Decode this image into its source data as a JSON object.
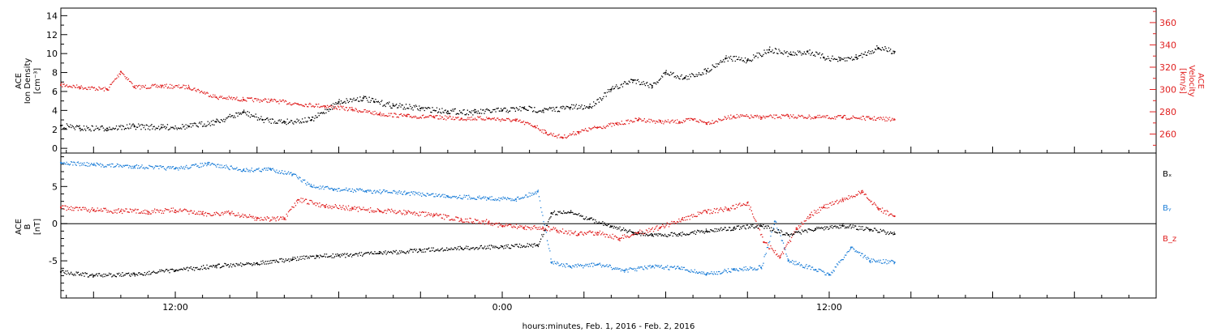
{
  "chart_data": [
    {
      "type": "scatter",
      "panel": "top",
      "title": "",
      "ylabel": [
        "ACE",
        "Ion Density",
        "[cm⁻³]"
      ],
      "y2label": [
        "ACE",
        "Velocity",
        "[km/s]"
      ],
      "ylim": [
        -0.5,
        14.8
      ],
      "y2lim": [
        243,
        373
      ],
      "yticks": [
        0,
        2,
        4,
        6,
        8,
        10,
        12,
        14
      ],
      "y2ticks": [
        260,
        280,
        300,
        320,
        340,
        360
      ],
      "colors": {
        "density": "#000000",
        "velocity": "#e02020"
      },
      "series": [
        {
          "name": "Ion Density",
          "axis": "left",
          "color": "#000000",
          "x": [
            7.8,
            8.5,
            9.5,
            10.5,
            11.5,
            12.5,
            13.5,
            14.5,
            15.2,
            16.0,
            17.0,
            18.0,
            18.9,
            19.3,
            20.0,
            21.0,
            22.0,
            23.0,
            24.0,
            24.8,
            25.5,
            26.5,
            27.2,
            28.0,
            28.8,
            29.5,
            30.0,
            30.7,
            31.5,
            32.2,
            33.0,
            33.8,
            34.6,
            35.2,
            35.8,
            36.4,
            37.0,
            37.8,
            38.4
          ],
          "y": [
            2.4,
            2.1,
            2.1,
            2.3,
            2.2,
            2.3,
            2.8,
            3.8,
            3.0,
            2.8,
            3.0,
            4.9,
            5.3,
            4.9,
            4.5,
            4.2,
            3.9,
            3.8,
            4.0,
            4.2,
            4.0,
            4.3,
            4.4,
            6.2,
            7.2,
            6.6,
            8.0,
            7.4,
            8.2,
            9.5,
            9.3,
            10.4,
            9.9,
            10.2,
            9.6,
            9.3,
            9.6,
            10.6,
            10.2
          ]
        },
        {
          "name": "Velocity",
          "axis": "right",
          "color": "#e02020",
          "x": [
            7.8,
            8.5,
            9.5,
            10.0,
            10.5,
            11.5,
            12.5,
            13.5,
            14.5,
            15.5,
            16.5,
            17.5,
            18.5,
            19.5,
            20.5,
            21.5,
            22.5,
            23.5,
            24.5,
            25.2,
            25.6,
            26.2,
            26.8,
            27.5,
            28.2,
            29.0,
            29.8,
            30.5,
            31.0,
            31.5,
            32.5,
            33.5,
            34.5,
            35.5,
            36.5,
            37.5,
            38.4
          ],
          "y": [
            304,
            302,
            300,
            316,
            302,
            303,
            302,
            293,
            291,
            290,
            287,
            285,
            282,
            278,
            276,
            275,
            274,
            274,
            272,
            267,
            261,
            257,
            262,
            266,
            269,
            273,
            271,
            271,
            273,
            270,
            276,
            275,
            276,
            275,
            275,
            274,
            273
          ]
        }
      ]
    },
    {
      "type": "scatter",
      "panel": "bottom",
      "title": "",
      "ylabel": [
        "ACE",
        "B",
        "[nT]"
      ],
      "ylim": [
        -10,
        9.5
      ],
      "yticks": [
        -5,
        0,
        5
      ],
      "zero_line": true,
      "colors": {
        "Bx": "#000000",
        "By": "#1e7fd8",
        "Bz": "#e02020"
      },
      "series": [
        {
          "name": "Bₓ",
          "color": "#000000",
          "x": [
            7.8,
            9.0,
            10.5,
            12.0,
            13.5,
            15.0,
            16.3,
            17.2,
            18.0,
            19.5,
            21.0,
            22.5,
            24.0,
            25.3,
            25.8,
            26.5,
            27.2,
            28.0,
            28.8,
            29.5,
            30.5,
            31.5,
            32.5,
            33.5,
            34.5,
            35.5,
            36.5,
            37.5,
            38.4
          ],
          "y": [
            -6.5,
            -7.0,
            -6.8,
            -6.3,
            -5.7,
            -5.3,
            -4.8,
            -4.4,
            -4.3,
            -4.0,
            -3.6,
            -3.3,
            -3.1,
            -2.9,
            1.4,
            1.5,
            0.6,
            -0.4,
            -1.2,
            -1.6,
            -1.4,
            -1.0,
            -0.6,
            -0.3,
            -1.5,
            -0.7,
            -0.3,
            -0.8,
            -1.4
          ]
        },
        {
          "name": "Bᵧ",
          "color": "#1e7fd8",
          "x": [
            7.8,
            9.0,
            10.5,
            12.0,
            13.2,
            14.5,
            15.5,
            16.3,
            17.0,
            17.8,
            19.0,
            20.5,
            22.0,
            23.5,
            24.5,
            25.3,
            25.8,
            26.5,
            27.5,
            28.5,
            29.5,
            30.5,
            31.5,
            32.5,
            33.5,
            34.0,
            34.5,
            35.5,
            36.0,
            36.8,
            37.5,
            38.4
          ],
          "y": [
            8.2,
            7.9,
            7.7,
            7.4,
            8.0,
            7.2,
            7.3,
            6.6,
            5.0,
            4.6,
            4.4,
            4.1,
            3.7,
            3.4,
            3.3,
            4.3,
            -5.2,
            -5.8,
            -5.5,
            -6.3,
            -5.8,
            -6.0,
            -6.8,
            -6.2,
            -5.9,
            0.3,
            -5.0,
            -6.2,
            -6.9,
            -3.2,
            -5.0,
            -5.2
          ]
        },
        {
          "name": "B_z",
          "color": "#e02020",
          "x": [
            7.8,
            9.0,
            10.0,
            11.0,
            12.0,
            13.0,
            14.0,
            15.0,
            16.0,
            16.5,
            17.5,
            18.5,
            19.5,
            20.5,
            21.5,
            22.5,
            23.5,
            24.0,
            24.8,
            25.5,
            26.0,
            26.8,
            27.5,
            28.3,
            29.0,
            29.8,
            30.6,
            31.5,
            32.3,
            33.0,
            33.6,
            34.2,
            34.8,
            35.3,
            35.8,
            36.5,
            37.2,
            37.8,
            38.4
          ],
          "y": [
            2.2,
            1.8,
            1.7,
            1.6,
            1.8,
            1.3,
            1.4,
            0.7,
            0.6,
            3.2,
            2.4,
            2.0,
            1.7,
            1.5,
            1.1,
            0.5,
            0.2,
            -0.3,
            -0.5,
            -0.6,
            -0.9,
            -1.4,
            -1.2,
            -2.0,
            -1.2,
            -0.5,
            0.6,
            1.6,
            2.0,
            2.8,
            -2.5,
            -4.5,
            -0.6,
            1.2,
            2.2,
            3.2,
            4.2,
            2.0,
            1.0
          ]
        }
      ]
    }
  ],
  "x_axis": {
    "title": "hours:minutes, Feb.  1, 2016 - Feb.  2, 2016",
    "range_hours": [
      7.8,
      48.0
    ],
    "tick_labels": [
      {
        "hour": 12,
        "label": "12:00"
      },
      {
        "hour": 24,
        "label": "0:00"
      },
      {
        "hour": 36,
        "label": "12:00"
      }
    ],
    "major_tick_interval_hours": 3
  }
}
